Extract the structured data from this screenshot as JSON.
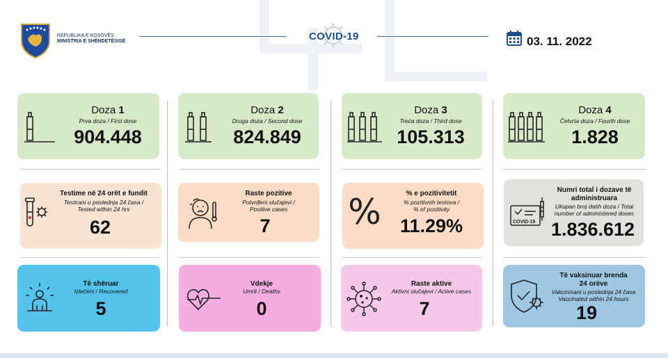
{
  "header": {
    "org_line1": "REPUBLIKA E KOSOVËS",
    "org_line2": "MINISTRIA E SHËNDETËSISË",
    "title": "COVID-19",
    "date": "03. 11. 2022"
  },
  "cards": {
    "dose1": {
      "title": "Doza",
      "number": "1",
      "subtitle": "Prva doza / First dose",
      "value": "904.448"
    },
    "dose2": {
      "title": "Doza",
      "number": "2",
      "subtitle": "Druga doza / Second dose",
      "value": "824.849"
    },
    "dose3": {
      "title": "Doza",
      "number": "3",
      "subtitle": "Treća doza / Third dose",
      "value": "105.313"
    },
    "dose4": {
      "title": "Doza",
      "number": "4",
      "subtitle": "Četvrta doza / Fourth dose",
      "value": "1.828"
    },
    "tests": {
      "title": "Testime në 24 orët e fundit",
      "subtitle_line1": "Testirani u poslednja 24 časa /",
      "subtitle_line2": "Tested within 24 hrs",
      "value": "62"
    },
    "positive": {
      "title": "Raste pozitive",
      "subtitle_line1": "Potvrđeni slučajevi /",
      "subtitle_line2": "Positive cases",
      "value": "7"
    },
    "positivity": {
      "title": "% e pozitivitetit",
      "subtitle_line1": "% pozitivnih testova /",
      "subtitle_line2": "% of positivity",
      "value": "11.29%"
    },
    "total_doses": {
      "title_line1": "Numri total i dozave të",
      "title_line2": "administruara",
      "subtitle_line1": "Ukupan broj datih doza / Total",
      "subtitle_line2": "number of administered doses",
      "value": "1.836.612",
      "icon_label": "COVID-19"
    },
    "recovered": {
      "title": "Të shëruar",
      "subtitle": "Izlečeni / Recovered",
      "value": "5"
    },
    "deaths": {
      "title": "Vdekje",
      "subtitle": "Umrli / Deaths",
      "value": "0"
    },
    "active": {
      "title": "Raste aktive",
      "subtitle": "Aktivni slučajevi / Active cases",
      "value": "7"
    },
    "vaccinated24": {
      "title_line1": "Të vaksinuar brenda",
      "title_line2": "24 orëve",
      "subtitle_line1": "Vakcinisani u poslednja 24 časa",
      "subtitle_line2": "Vaccinated within 24 hours",
      "value": "19"
    }
  },
  "icons": {
    "logo": "kosovo-coat-of-arms",
    "calendar": "calendar-icon",
    "dose": "vial-icon",
    "tests": "test-tube-icon",
    "positive": "sick-person-icon",
    "positivity": "percent-icon",
    "total_doses": "vaccination-card-icon",
    "recovered": "recovered-person-icon",
    "deaths": "heartbeat-icon",
    "active": "virus-icon",
    "vaccinated24": "shield-virus-icon"
  },
  "colors": {
    "green": "#d7e9c9",
    "peach": "#f9e4d3",
    "orange": "#fcdcc6",
    "grey": "#e3e1dd",
    "blue": "#54c4ec",
    "pink": "#f6aee1",
    "light_pink": "#f6c8ea",
    "steel": "#9ec7e4",
    "brand": "#1e4f8c"
  }
}
